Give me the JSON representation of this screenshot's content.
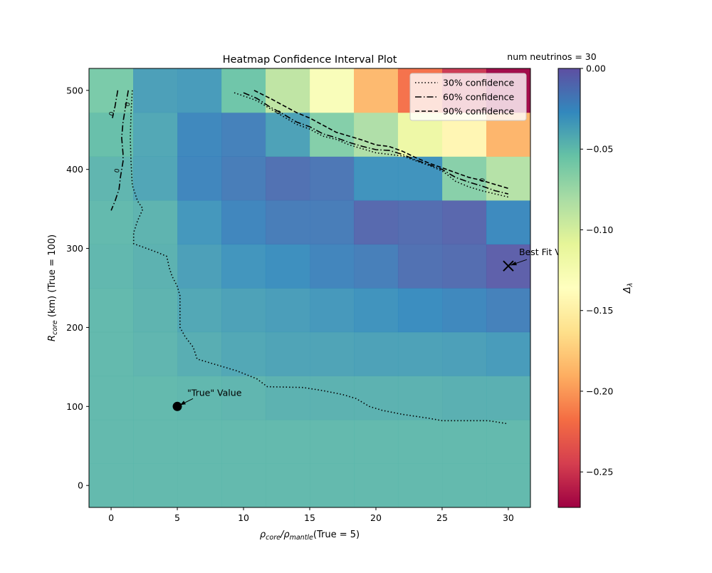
{
  "chart_data": {
    "type": "heatmap",
    "title": "Heatmap Confidence Interval Plot",
    "subtitle": "num neutrinos = 30",
    "xlabel": {
      "main": "ρ",
      "sub1": "core",
      "mid": "/ρ",
      "sub2": "mantle",
      "tail": "(True = 5)"
    },
    "ylabel": {
      "main": "R",
      "sub": "core",
      "tail": " (km) (True = 100)"
    },
    "colorbar_label": {
      "main": "Δ",
      "sub": "λ"
    },
    "x_ticks": [
      "0",
      "5",
      "10",
      "15",
      "20",
      "25",
      "30"
    ],
    "x_tick_values": [
      0,
      5,
      10,
      15,
      20,
      25,
      30
    ],
    "y_ticks": [
      "0",
      "100",
      "200",
      "300",
      "400",
      "500"
    ],
    "y_tick_values": [
      0,
      100,
      200,
      300,
      400,
      500
    ],
    "colorbar_ticks": [
      "0.00",
      "−0.05",
      "−0.10",
      "−0.15",
      "−0.20",
      "−0.25"
    ],
    "colorbar_tick_values": [
      0,
      -0.05,
      -0.1,
      -0.15,
      -0.2,
      -0.25
    ],
    "xlim": [
      -1.67,
      31.67
    ],
    "ylim": [
      -27.8,
      527.8
    ],
    "colorbar_range": [
      -0.272,
      0
    ],
    "colormap": "Spectral",
    "x_centers": [
      0,
      3.33,
      6.67,
      10,
      13.33,
      16.67,
      20,
      23.33,
      26.67,
      30
    ],
    "y_centers": [
      0,
      55.6,
      111.1,
      166.7,
      222.2,
      277.8,
      333.3,
      388.9,
      444.4,
      500
    ],
    "z": [
      [
        -0.049,
        -0.049,
        -0.049,
        -0.049,
        -0.049,
        -0.049,
        -0.049,
        -0.049,
        -0.049,
        -0.049
      ],
      [
        -0.049,
        -0.049,
        -0.049,
        -0.049,
        -0.049,
        -0.049,
        -0.049,
        -0.049,
        -0.049,
        -0.049
      ],
      [
        -0.049,
        -0.049,
        -0.048,
        -0.047,
        -0.045,
        -0.045,
        -0.045,
        -0.045,
        -0.044,
        -0.044
      ],
      [
        -0.049,
        -0.047,
        -0.043,
        -0.04,
        -0.038,
        -0.038,
        -0.037,
        -0.037,
        -0.036,
        -0.034
      ],
      [
        -0.049,
        -0.046,
        -0.04,
        -0.037,
        -0.035,
        -0.033,
        -0.03,
        -0.027,
        -0.025,
        -0.021
      ],
      [
        -0.048,
        -0.045,
        -0.036,
        -0.031,
        -0.028,
        -0.023,
        -0.02,
        -0.013,
        -0.011,
        -0.005
      ],
      [
        -0.049,
        -0.046,
        -0.032,
        -0.024,
        -0.019,
        -0.019,
        -0.009,
        -0.011,
        -0.008,
        -0.026
      ],
      [
        -0.047,
        -0.039,
        -0.024,
        -0.019,
        -0.013,
        -0.016,
        -0.03,
        -0.03,
        -0.066,
        -0.085
      ],
      [
        -0.052,
        -0.04,
        -0.025,
        -0.021,
        -0.037,
        -0.064,
        -0.082,
        -0.116,
        -0.144,
        -0.188
      ],
      [
        -0.06,
        -0.036,
        -0.034,
        -0.055,
        -0.09,
        -0.13,
        -0.186,
        -0.218,
        -0.25,
        -0.272
      ]
    ],
    "contours": [
      {
        "name": "30% confidence",
        "dash": "dotted",
        "label": "0",
        "lines": [
          [
            [
              1.6,
              500
            ],
            [
              1.5,
              470
            ],
            [
              1.45,
              440
            ],
            [
              1.5,
              410
            ],
            [
              1.6,
              380
            ],
            [
              2.0,
              360
            ],
            [
              2.4,
              350
            ],
            [
              2.0,
              335
            ],
            [
              1.7,
              320
            ],
            [
              1.7,
              306
            ],
            [
              3.5,
              295
            ],
            [
              4.2,
              290
            ],
            [
              4.4,
              275
            ],
            [
              4.6,
              265
            ],
            [
              5.0,
              252
            ],
            [
              5.2,
              240
            ],
            [
              5.2,
              200
            ],
            [
              5.6,
              188
            ],
            [
              6.2,
              175
            ],
            [
              6.5,
              160
            ],
            [
              7.5,
              155
            ],
            [
              9.5,
              145
            ],
            [
              11.0,
              135
            ],
            [
              11.8,
              125
            ],
            [
              14.5,
              124
            ],
            [
              16.0,
              120
            ],
            [
              17.5,
              115
            ],
            [
              18.5,
              110
            ],
            [
              19.5,
              100
            ],
            [
              20.5,
              95
            ],
            [
              22.0,
              90
            ],
            [
              24.0,
              85
            ],
            [
              25.0,
              82
            ],
            [
              27.0,
              82
            ],
            [
              28.5,
              82
            ],
            [
              30.0,
              78
            ]
          ],
          [
            [
              9.3,
              497
            ],
            [
              10.0,
              493
            ],
            [
              11.0,
              487
            ],
            [
              12.0,
              477
            ],
            [
              13.0,
              467
            ],
            [
              14.0,
              457
            ],
            [
              15.0,
              451
            ],
            [
              16.0,
              442
            ],
            [
              17.0,
              438
            ],
            [
              18.0,
              431
            ],
            [
              19.0,
              426
            ],
            [
              20.0,
              421
            ],
            [
              21.0,
              419
            ],
            [
              22.0,
              417
            ],
            [
              23.0,
              411
            ],
            [
              24.0,
              405
            ],
            [
              25.0,
              398
            ],
            [
              25.5,
              392
            ],
            [
              26.0,
              385
            ],
            [
              27.0,
              378
            ],
            [
              28.0,
              373
            ],
            [
              29.0,
              369
            ],
            [
              30.0,
              365
            ]
          ]
        ]
      },
      {
        "name": "60% confidence",
        "dash": "dashdot",
        "label": "0",
        "lines": [
          [
            [
              1.3,
              500
            ],
            [
              1.1,
              480
            ],
            [
              0.9,
              460
            ],
            [
              0.8,
              440
            ],
            [
              0.9,
              420
            ],
            [
              0.9,
              410
            ],
            [
              0.7,
              390
            ],
            [
              0.6,
              375
            ],
            [
              0.3,
              360
            ],
            [
              0.0,
              348
            ]
          ],
          [
            [
              0.5,
              500
            ],
            [
              0.3,
              480
            ],
            [
              0.1,
              465
            ]
          ],
          [
            [
              10.0,
              497
            ],
            [
              11.0,
              490
            ],
            [
              12.0,
              479
            ],
            [
              13.0,
              470
            ],
            [
              14.0,
              460
            ],
            [
              15.0,
              454
            ],
            [
              16.0,
              445
            ],
            [
              17.0,
              440
            ],
            [
              18.0,
              434
            ],
            [
              19.0,
              429
            ],
            [
              20.0,
              425
            ],
            [
              21.0,
              424
            ],
            [
              22.0,
              419
            ],
            [
              23.0,
              412
            ],
            [
              24.0,
              406
            ],
            [
              25.0,
              400
            ],
            [
              26.0,
              390
            ],
            [
              27.0,
              384
            ],
            [
              28.0,
              379
            ],
            [
              29.0,
              373
            ],
            [
              30.0,
              369
            ]
          ]
        ]
      },
      {
        "name": "90% confidence",
        "dash": "dashed",
        "label": "0",
        "lines": [
          [
            [
              10.8,
              500
            ],
            [
              12.0,
              490
            ],
            [
              13.0,
              481
            ],
            [
              14.0,
              472
            ],
            [
              15.0,
              465
            ],
            [
              16.0,
              456
            ],
            [
              17.0,
              447
            ],
            [
              18.0,
              442
            ],
            [
              19.0,
              437
            ],
            [
              20.0,
              431
            ],
            [
              21.0,
              429
            ],
            [
              22.0,
              423
            ],
            [
              23.0,
              415
            ],
            [
              24.0,
              408
            ],
            [
              25.0,
              402
            ],
            [
              26.0,
              396
            ],
            [
              27.0,
              390
            ],
            [
              28.0,
              386
            ],
            [
              29.0,
              381
            ],
            [
              30.0,
              376
            ]
          ]
        ]
      }
    ],
    "legend": {
      "placement": "top-right",
      "entries": [
        {
          "label": "30% confidence",
          "dash": "dotted"
        },
        {
          "label": "60% confidence",
          "dash": "dashdot"
        },
        {
          "label": "90% confidence",
          "dash": "dashed"
        }
      ]
    },
    "markers": [
      {
        "name": "true-value",
        "label": "\"True\" Value",
        "x": 5,
        "y": 100,
        "symbol": "filled-circle"
      },
      {
        "name": "best-fit-value",
        "label": "Best Fit Value",
        "x": 30,
        "y": 277.8,
        "symbol": "cross"
      }
    ]
  }
}
